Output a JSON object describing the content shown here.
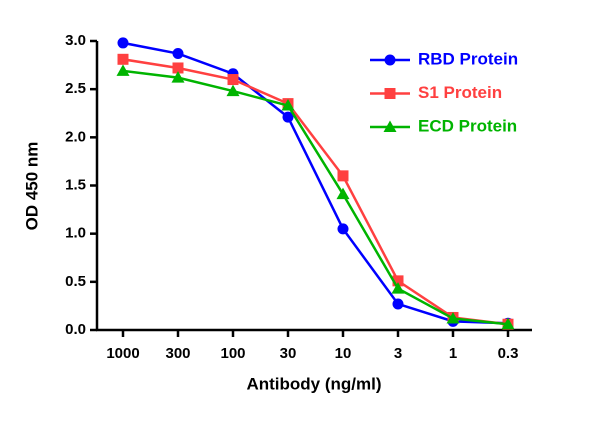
{
  "chart_data": {
    "type": "line",
    "x_label": "Antibody (ng/ml)",
    "y_label": "OD 450 nm",
    "categories": [
      "1000",
      "300",
      "100",
      "30",
      "10",
      "3",
      "1",
      "0.3"
    ],
    "ylim": [
      0,
      3
    ],
    "yticks": [
      {
        "value": 0,
        "label": "0.0"
      },
      0.5,
      {
        "value": 1,
        "label": "1.0"
      },
      1.5,
      {
        "value": 2,
        "label": "2.0"
      },
      2.5,
      {
        "value": 3,
        "label": "3.0"
      }
    ],
    "legend": "top-right",
    "series": [
      {
        "name": "RBD Protein",
        "color": "#0000ff",
        "marker": "circle",
        "values": [
          2.98,
          2.87,
          2.66,
          2.21,
          1.05,
          0.27,
          0.09,
          0.07
        ]
      },
      {
        "name": "S1 Protein",
        "color": "#ff4040",
        "marker": "square",
        "values": [
          2.81,
          2.72,
          2.6,
          2.35,
          1.6,
          0.51,
          0.13,
          0.06
        ]
      },
      {
        "name": "ECD Protein",
        "color": "#00b400",
        "marker": "triangle",
        "values": [
          2.69,
          2.62,
          2.48,
          2.33,
          1.41,
          0.43,
          0.12,
          0.06
        ]
      }
    ]
  }
}
